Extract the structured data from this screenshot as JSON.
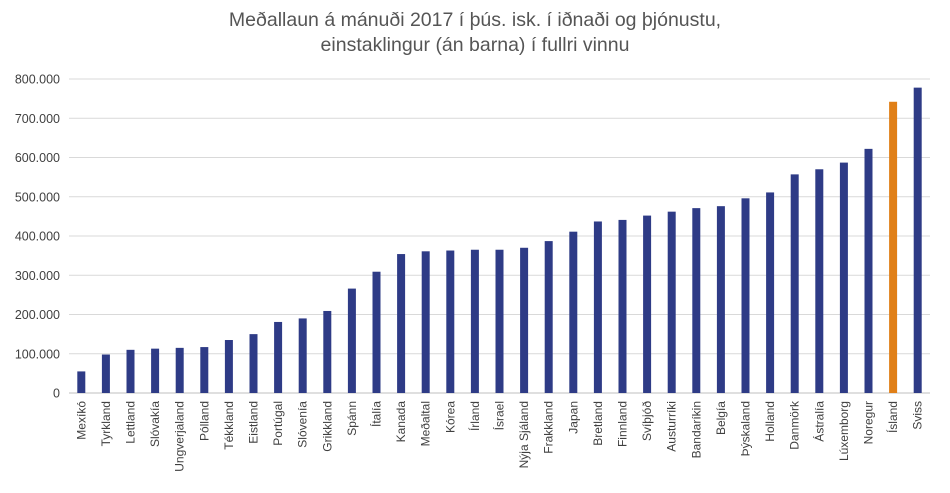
{
  "chart_data": {
    "type": "bar",
    "title": [
      "Meðallaun á mánuði 2017 í þús. isk. í iðnaði og þjónustu,",
      "einstaklingur (án barna) í fullri vinnu"
    ],
    "xlabel": "",
    "ylabel": "",
    "ylim": [
      0,
      800000
    ],
    "yticks": [
      0,
      100000,
      200000,
      300000,
      400000,
      500000,
      600000,
      700000,
      800000
    ],
    "ytick_labels": [
      "0",
      "100.000",
      "200.000",
      "300.000",
      "400.000",
      "500.000",
      "600.000",
      "700.000",
      "800.000"
    ],
    "grid": true,
    "categories": [
      "Mexíkó",
      "Tyrkland",
      "Lettland",
      "Slóvakía",
      "Ungverjaland",
      "Pólland",
      "Tékkland",
      "Eistland",
      "Portúgal",
      "Slóvenía",
      "Grikkland",
      "Spánn",
      "Ítalía",
      "Kanada",
      "Meðaltal",
      "Kórea",
      "Írland",
      "Ísrael",
      "Nýja Sjáland",
      "Frakkland",
      "Japan",
      "Bretland",
      "Finnland",
      "Svíþjóð",
      "Austurríki",
      "Bandaríkin",
      "Belgía",
      "Þýskaland",
      "Holland",
      "Danmörk",
      "Ástralía",
      "Lúxemborg",
      "Noregur",
      "Ísland",
      "Sviss"
    ],
    "values": [
      55000,
      98000,
      110000,
      113000,
      115000,
      117000,
      135000,
      150000,
      181000,
      190000,
      209000,
      266000,
      309000,
      354000,
      361000,
      363000,
      365000,
      365000,
      370000,
      387000,
      411000,
      437000,
      441000,
      452000,
      462000,
      471000,
      476000,
      496000,
      511000,
      557000,
      570000,
      587000,
      622000,
      742000,
      778000
    ],
    "colors": {
      "default": "#2E3B86",
      "highlight": "#E07F17",
      "highlight_category": "Ísland",
      "grid": "#D9D9D9",
      "axis": "#BFBFBF"
    }
  }
}
